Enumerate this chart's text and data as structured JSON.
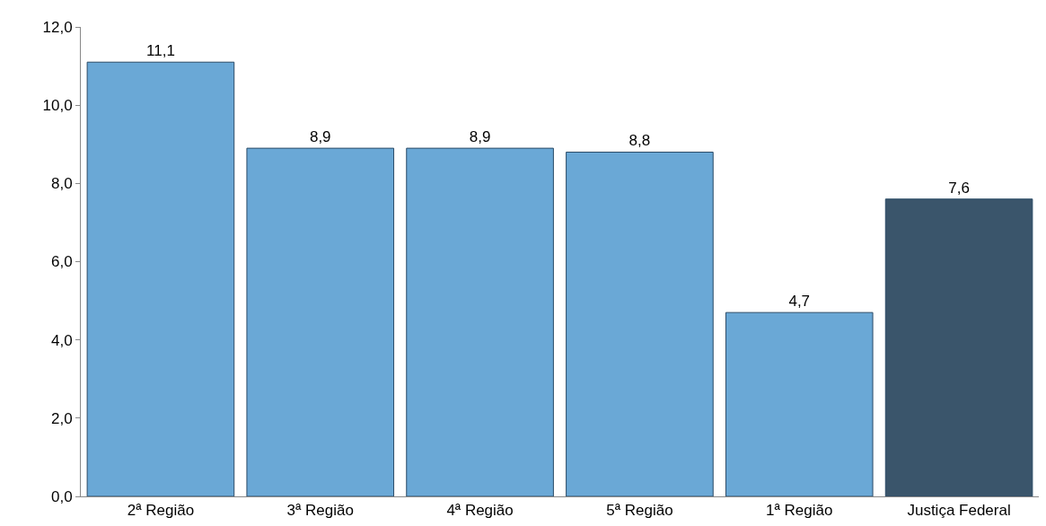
{
  "chart_data": {
    "type": "bar",
    "categories": [
      "2ª Região",
      "3ª Região",
      "4ª Região",
      "5ª Região",
      "1ª Região",
      "Justiça Federal"
    ],
    "values": [
      11.1,
      8.9,
      8.9,
      8.8,
      4.7,
      7.6
    ],
    "colors": [
      "#6aa8d6",
      "#6aa8d6",
      "#6aa8d6",
      "#6aa8d6",
      "#6aa8d6",
      "#3a556b"
    ],
    "value_labels": [
      "11,1",
      "8,9",
      "8,9",
      "8,8",
      "4,7",
      "7,6"
    ],
    "ylim": [
      0,
      12
    ],
    "yticks": [
      {
        "value": 0,
        "label": "0,0"
      },
      {
        "value": 2,
        "label": "2,0"
      },
      {
        "value": 4,
        "label": "4,0"
      },
      {
        "value": 6,
        "label": "6,0"
      },
      {
        "value": 8,
        "label": "8,0"
      },
      {
        "value": 10,
        "label": "10,0"
      },
      {
        "value": 12,
        "label": "12,0"
      }
    ]
  }
}
